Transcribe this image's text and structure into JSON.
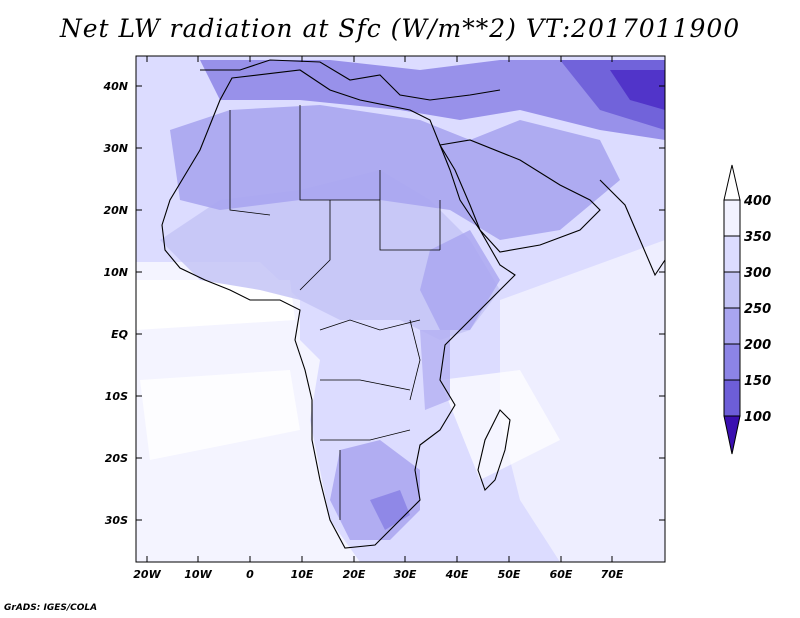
{
  "title": "Net LW radiation at Sfc (W/m**2) VT:2017011900",
  "credit": "GrADS: IGES/COLA",
  "map": {
    "lon_range": [
      -23,
      79
    ],
    "lat_range": [
      -36,
      45
    ],
    "lat_ticks": [
      "40N",
      "30N",
      "20N",
      "10N",
      "EQ",
      "10S",
      "20S",
      "30S"
    ],
    "lon_ticks": [
      "20W",
      "10W",
      "0",
      "10E",
      "20E",
      "30E",
      "40E",
      "50E",
      "60E",
      "70E"
    ]
  },
  "colorbar": {
    "levels": [
      "400",
      "350",
      "300",
      "250",
      "200",
      "150",
      "100"
    ],
    "colors": [
      "#f2f2ff",
      "#dcdcff",
      "#c4c4f6",
      "#a9a5f0",
      "#8c84e6",
      "#6d5ed8",
      "#4a28c4"
    ]
  }
}
